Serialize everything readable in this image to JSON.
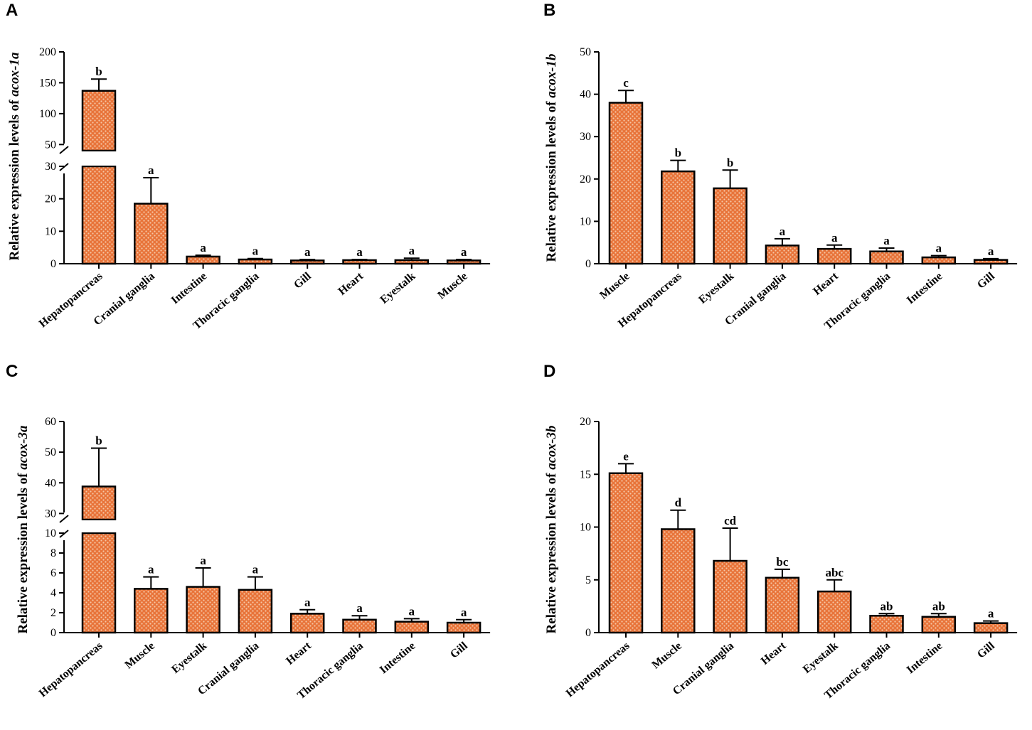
{
  "chart_data": [
    {
      "panel": "A",
      "type": "bar",
      "ylabel_prefix": "Relative expression levels of ",
      "ylabel_gene": "acox-1a",
      "categories": [
        "Hepatopancreas",
        "Cranial ganglia",
        "Intestine",
        "Thoracic ganglia",
        "Gill",
        "Heart",
        "Eyestalk",
        "Muscle"
      ],
      "values": [
        137,
        18.5,
        2.2,
        1.3,
        1.0,
        1.1,
        1.1,
        1.0
      ],
      "errors": [
        19,
        8,
        0.4,
        0.3,
        0.3,
        0.2,
        0.6,
        0.3
      ],
      "letters": [
        "b",
        "a",
        "a",
        "a",
        "a",
        "a",
        "a",
        "a"
      ],
      "axis_break": true,
      "lower_range": [
        0,
        30
      ],
      "upper_range": [
        40,
        200
      ],
      "lower_ticks": [
        "0",
        "10",
        "20",
        "30"
      ],
      "upper_ticks": [
        "50",
        "100",
        "150",
        "200"
      ],
      "lower_tick_values": [
        0,
        10,
        20,
        30
      ],
      "upper_tick_values": [
        50,
        100,
        150,
        200
      ]
    },
    {
      "panel": "B",
      "type": "bar",
      "ylabel_prefix": "Relative expression levels of ",
      "ylabel_gene": "acox-1b",
      "categories": [
        "Muscle",
        "Hepatopancreas",
        "Eyestalk",
        "Cranial ganglia",
        "Heart",
        "Thoracic ganglia",
        "Intestine",
        "Gill"
      ],
      "values": [
        38,
        21.8,
        17.8,
        4.3,
        3.5,
        2.9,
        1.5,
        0.9
      ],
      "errors": [
        2.9,
        2.6,
        4.3,
        1.6,
        0.9,
        0.8,
        0.4,
        0.3
      ],
      "letters": [
        "c",
        "b",
        "b",
        "a",
        "a",
        "a",
        "a",
        "a"
      ],
      "axis_break": false,
      "range": [
        0,
        50
      ],
      "ticks": [
        "0",
        "10",
        "20",
        "30",
        "40",
        "50"
      ],
      "tick_values": [
        0,
        10,
        20,
        30,
        40,
        50
      ]
    },
    {
      "panel": "C",
      "type": "bar",
      "ylabel_prefix": "Relative expression levels of ",
      "ylabel_gene": "acox-3a",
      "categories": [
        "Hepatopancreas",
        "Muscle",
        "Eyestalk",
        "Cranial ganglia",
        "Heart",
        "Thoracic ganglia",
        "Intestine",
        "Gill"
      ],
      "values": [
        38.8,
        4.4,
        4.6,
        4.3,
        1.9,
        1.3,
        1.1,
        1.0
      ],
      "errors": [
        12.5,
        1.2,
        1.9,
        1.3,
        0.4,
        0.4,
        0.3,
        0.3
      ],
      "letters": [
        "b",
        "a",
        "a",
        "a",
        "a",
        "a",
        "a",
        "a"
      ],
      "axis_break": true,
      "lower_range": [
        0,
        10
      ],
      "upper_range": [
        28,
        60
      ],
      "lower_ticks": [
        "0",
        "2",
        "4",
        "6",
        "8",
        "10"
      ],
      "upper_ticks": [
        "30",
        "40",
        "50",
        "60"
      ],
      "lower_tick_values": [
        0,
        2,
        4,
        6,
        8,
        10
      ],
      "upper_tick_values": [
        30,
        40,
        50,
        60
      ]
    },
    {
      "panel": "D",
      "type": "bar",
      "ylabel_prefix": "Relative expression levels of ",
      "ylabel_gene": "acox-3b",
      "categories": [
        "Hepatopancreas",
        "Muscle",
        "Cranial ganglia",
        "Heart",
        "Eyestalk",
        "Thoracic ganglia",
        "Intestine",
        "Gill"
      ],
      "values": [
        15.1,
        9.8,
        6.8,
        5.2,
        3.9,
        1.6,
        1.5,
        0.9
      ],
      "errors": [
        0.9,
        1.8,
        3.1,
        0.8,
        1.1,
        0.2,
        0.3,
        0.2
      ],
      "letters": [
        "e",
        "d",
        "cd",
        "bc",
        "abc",
        "ab",
        "ab",
        "a"
      ],
      "axis_break": false,
      "range": [
        0,
        20
      ],
      "ticks": [
        "0",
        "5",
        "10",
        "15",
        "20"
      ],
      "tick_values": [
        0,
        5,
        10,
        15,
        20
      ]
    }
  ]
}
